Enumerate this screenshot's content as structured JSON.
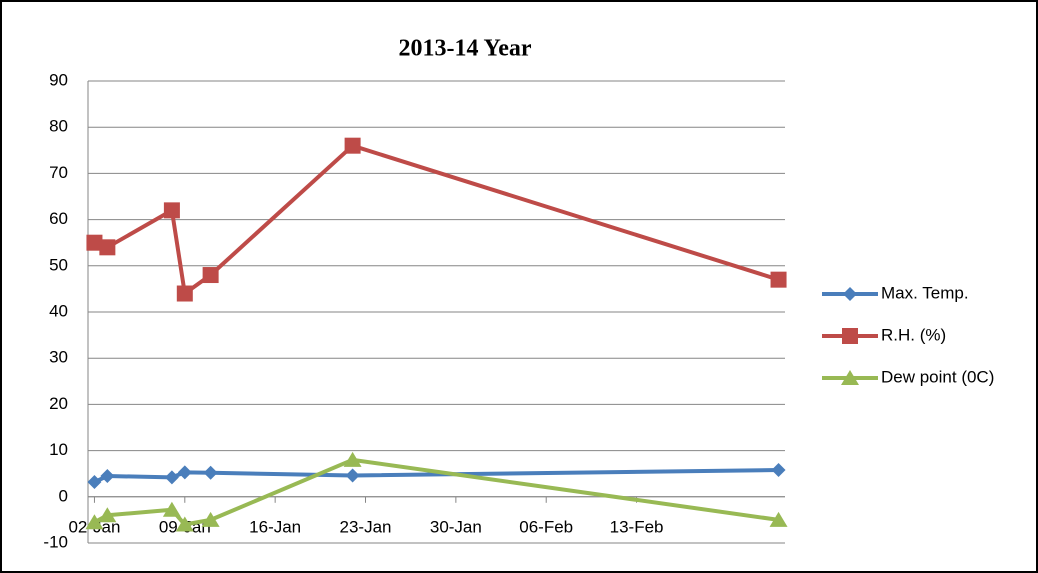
{
  "chart_data": {
    "type": "line",
    "title": "2013-14 Year",
    "x": [
      2,
      3,
      8,
      9,
      11,
      22,
      55
    ],
    "series": [
      {
        "name": "Max. Temp.",
        "color": "#4a7ebb",
        "marker": "diamond",
        "values": [
          3.2,
          4.5,
          4.2,
          5.3,
          5.2,
          4.6,
          5.8
        ]
      },
      {
        "name": "R.H. (%)",
        "color": "#be4b48",
        "marker": "square",
        "values": [
          55,
          54,
          62,
          44,
          48,
          76,
          47
        ]
      },
      {
        "name": "Dew point (0C)",
        "color": "#98b954",
        "marker": "triangle",
        "values": [
          -5.5,
          -4,
          -2.8,
          -6,
          -5,
          8,
          -5
        ]
      }
    ],
    "xlim": [
      1.5,
      55.5
    ],
    "xticks": [
      {
        "value": 2,
        "label": "02-Jan"
      },
      {
        "value": 9,
        "label": "09-Jan"
      },
      {
        "value": 16,
        "label": "16-Jan"
      },
      {
        "value": 23,
        "label": "23-Jan"
      },
      {
        "value": 30,
        "label": "30-Jan"
      },
      {
        "value": 37,
        "label": "06-Feb"
      },
      {
        "value": 44,
        "label": "13-Feb"
      }
    ],
    "ylim": [
      -10,
      90
    ],
    "yticks": [
      -10,
      0,
      10,
      20,
      30,
      40,
      50,
      60,
      70,
      80,
      90
    ],
    "grid": true,
    "legend": "right"
  }
}
